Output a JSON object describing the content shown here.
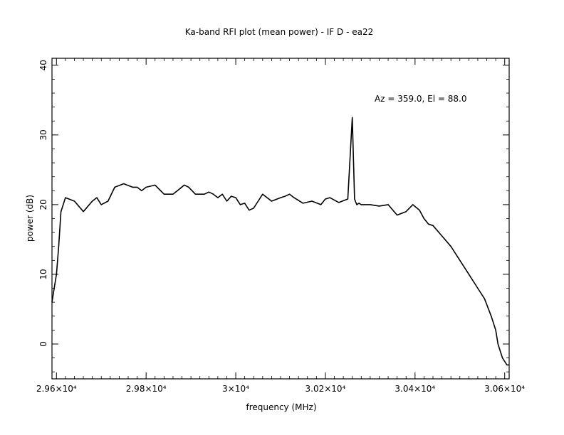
{
  "chart_data": {
    "type": "line",
    "title": "Ka-band RFI plot (mean power) - IF D - ea22",
    "xlabel": "frequency (MHz)",
    "ylabel": "power (dB)",
    "annotation": "Az = 359.0, El = 88.0",
    "xlim": [
      29590,
      30610
    ],
    "ylim": [
      -5,
      41
    ],
    "x_ticks": [
      {
        "value": 29600,
        "label": "2.96×10⁴"
      },
      {
        "value": 29800,
        "label": "2.98×10⁴"
      },
      {
        "value": 30000,
        "label": "3×10⁴"
      },
      {
        "value": 30200,
        "label": "3.02×10⁴"
      },
      {
        "value": 30400,
        "label": "3.04×10⁴"
      },
      {
        "value": 30600,
        "label": "3.06×10⁴"
      }
    ],
    "y_ticks": [
      {
        "value": 0,
        "label": "0"
      },
      {
        "value": 10,
        "label": "10"
      },
      {
        "value": 20,
        "label": "20"
      },
      {
        "value": 30,
        "label": "30"
      },
      {
        "value": 40,
        "label": "40"
      }
    ],
    "grid": false,
    "line_color": "#000000",
    "series": [
      {
        "x": [
          29590,
          29595,
          29600,
          29605,
          29610,
          29620,
          29640,
          29660,
          29680,
          29690,
          29700,
          29715,
          29730,
          29750,
          29770,
          29780,
          29790,
          29800,
          29820,
          29840,
          29860,
          29870,
          29885,
          29895,
          29910,
          29930,
          29940,
          29950,
          29960,
          29970,
          29980,
          29990,
          30000,
          30010,
          30020,
          30030,
          30040,
          30050,
          30060,
          30080,
          30100,
          30110,
          30120,
          30130,
          30150,
          30170,
          30190,
          30200,
          30210,
          30230,
          30250,
          30260,
          30265,
          30270,
          30275,
          30280,
          30300,
          30320,
          30340,
          30360,
          30380,
          30395,
          30410,
          30420,
          30430,
          30440,
          30460,
          30480,
          30500,
          30520,
          30540,
          30555,
          30570,
          30580,
          30585,
          30590,
          30595,
          30600,
          30605,
          30610
        ],
        "y": [
          6,
          8,
          10,
          14,
          19,
          21,
          20.5,
          19,
          20.5,
          21,
          20,
          20.5,
          22.5,
          23,
          22.5,
          22.5,
          22,
          22.5,
          22.8,
          21.5,
          21.5,
          22,
          22.8,
          22.5,
          21.5,
          21.5,
          21.8,
          21.5,
          21,
          21.5,
          20.5,
          21.2,
          21,
          20,
          20.2,
          19.2,
          19.5,
          20.5,
          21.5,
          20.5,
          21,
          21.2,
          21.5,
          21,
          20.2,
          20.5,
          20,
          20.8,
          21,
          20.3,
          20.8,
          32.5,
          20.8,
          20,
          20.2,
          20,
          20,
          19.8,
          20,
          18.5,
          19,
          20,
          19.2,
          18,
          17.2,
          17,
          15.5,
          14,
          12,
          10,
          8,
          6.5,
          4,
          2,
          0,
          -1,
          -2,
          -2.5,
          -3,
          -3
        ]
      }
    ]
  }
}
